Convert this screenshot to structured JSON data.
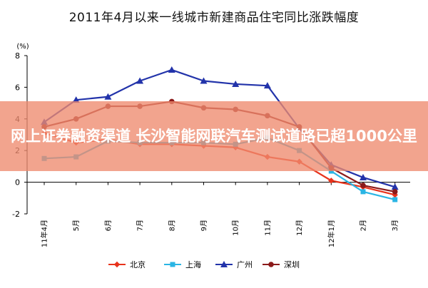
{
  "title": "2011年4月以来一线城市新建商品住宅同比涨跌幅度",
  "overlay_text": "网上证券融资渠道 长沙智能网联汽车测试道路已超1000公里",
  "colors": {
    "beijing": "#e8331c",
    "shanghai": "#2ab5e4",
    "guangzhou": "#2233aa",
    "shenzhen": "#8b1a1a",
    "overlay": "#ee8a6e"
  },
  "chart_data": {
    "type": "line",
    "title": "2011年4月以来一线城市新建商品住宅同比涨跌幅度",
    "ylabel": "(%)",
    "xlabel": "",
    "ylim": [
      -2,
      8
    ],
    "yticks": [
      -2,
      0,
      2,
      4,
      6,
      8
    ],
    "grid": false,
    "legend_position": "bottom",
    "categories": [
      "11年4月",
      "5月",
      "6月",
      "7月",
      "8月",
      "9月",
      "10月",
      "11月",
      "12月",
      "12年1月",
      "2月",
      "3月"
    ],
    "series": [
      {
        "name": "北京",
        "color": "#e8331c",
        "marker": "diamond",
        "values": [
          3.1,
          2.5,
          2.7,
          2.4,
          2.4,
          2.3,
          2.2,
          1.6,
          1.3,
          0.1,
          -0.3,
          -0.8
        ]
      },
      {
        "name": "上海",
        "color": "#2ab5e4",
        "marker": "square",
        "values": [
          1.5,
          1.6,
          2.6,
          2.5,
          2.5,
          2.5,
          2.4,
          2.8,
          2.0,
          0.7,
          -0.6,
          -1.1
        ]
      },
      {
        "name": "广州",
        "color": "#2233aa",
        "marker": "triangle",
        "values": [
          3.8,
          5.2,
          5.4,
          6.4,
          7.1,
          6.4,
          6.2,
          6.1,
          3.4,
          1.1,
          0.3,
          -0.3
        ]
      },
      {
        "name": "深圳",
        "color": "#8b1a1a",
        "marker": "circle",
        "values": [
          3.5,
          4.0,
          4.8,
          4.8,
          5.1,
          4.7,
          4.6,
          4.2,
          3.5,
          0.9,
          -0.2,
          -0.6
        ]
      }
    ]
  }
}
